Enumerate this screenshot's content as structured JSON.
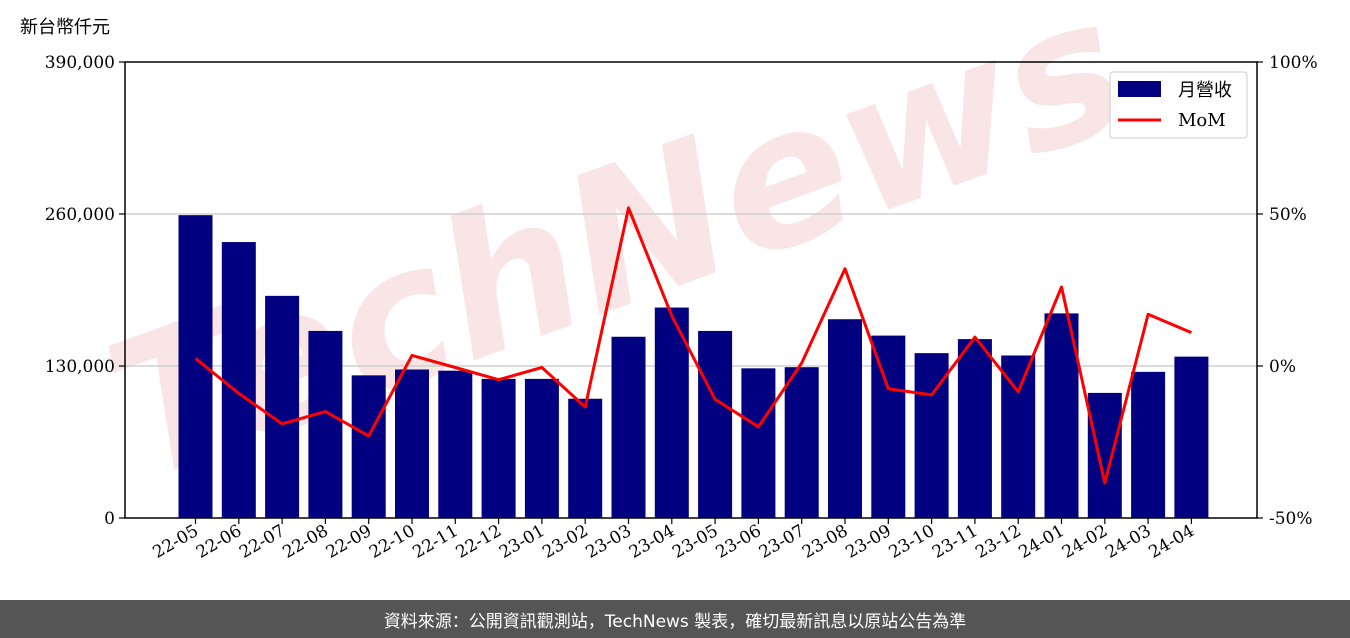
{
  "footer": {
    "text": "資料來源：公開資訊觀測站，TechNews 製表，確切最新訊息以原站公告為準"
  },
  "watermark": {
    "text": "TechNews",
    "color": "#f5d0d0"
  },
  "chart_data": {
    "type": "bar",
    "title": "",
    "ylabel": "新台幣仟元",
    "categories": [
      "22-05",
      "22-06",
      "22-07",
      "22-08",
      "22-09",
      "22-10",
      "22-11",
      "22-12",
      "23-01",
      "23-02",
      "23-03",
      "23-04",
      "23-05",
      "23-06",
      "23-07",
      "23-08",
      "23-09",
      "23-10",
      "23-11",
      "23-12",
      "24-01",
      "24-02",
      "24-03",
      "24-04"
    ],
    "ylim": [
      0,
      390000
    ],
    "yticks": [
      0,
      130000,
      260000,
      390000
    ],
    "ytick_labels": [
      "0",
      "130,000",
      "260,000",
      "390,000"
    ],
    "y2lim": [
      -50,
      100
    ],
    "y2ticks": [
      -50,
      0,
      50,
      100
    ],
    "y2tick_labels": [
      "-50%",
      "0%",
      "50%",
      "100%"
    ],
    "grid": "horizontal",
    "legend_position": "top-right",
    "series": [
      {
        "name": "月營收",
        "type": "bar",
        "axis": "left",
        "color": "#000080",
        "values": [
          259000,
          236000,
          190000,
          160000,
          122000,
          127000,
          126000,
          119000,
          119000,
          102000,
          155000,
          180000,
          160000,
          128000,
          129000,
          170000,
          156000,
          141000,
          153000,
          139000,
          175000,
          107000,
          125000,
          138000
        ]
      },
      {
        "name": "MoM",
        "type": "line",
        "axis": "right",
        "color": "#ff0000",
        "values": [
          2.5,
          -9,
          -19,
          -15,
          -23,
          3.5,
          -0.5,
          -4.5,
          -0.5,
          -13.5,
          52,
          16.5,
          -11,
          -20,
          1,
          32,
          -7.5,
          -9.5,
          9.5,
          -8.5,
          26,
          -38.5,
          17,
          11
        ]
      }
    ]
  }
}
